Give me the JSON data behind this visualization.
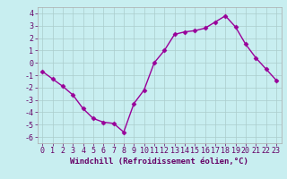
{
  "x": [
    0,
    1,
    2,
    3,
    4,
    5,
    6,
    7,
    8,
    9,
    10,
    11,
    12,
    13,
    14,
    15,
    16,
    17,
    18,
    19,
    20,
    21,
    22,
    23
  ],
  "y": [
    -0.7,
    -1.3,
    -1.9,
    -2.6,
    -3.7,
    -4.5,
    -4.8,
    -4.9,
    -5.6,
    -3.3,
    -2.2,
    0.0,
    1.0,
    2.3,
    2.5,
    2.6,
    2.8,
    3.3,
    3.8,
    2.9,
    1.5,
    0.4,
    -0.5,
    -1.4
  ],
  "line_color": "#990099",
  "marker": "D",
  "marker_size": 2.5,
  "linewidth": 1.0,
  "xlabel": "Windchill (Refroidissement éolien,°C)",
  "xlabel_fontsize": 6.5,
  "ylim": [
    -6.5,
    4.5
  ],
  "xlim": [
    -0.5,
    23.5
  ],
  "yticks": [
    -6,
    -5,
    -4,
    -3,
    -2,
    -1,
    0,
    1,
    2,
    3,
    4
  ],
  "xticks": [
    0,
    1,
    2,
    3,
    4,
    5,
    6,
    7,
    8,
    9,
    10,
    11,
    12,
    13,
    14,
    15,
    16,
    17,
    18,
    19,
    20,
    21,
    22,
    23
  ],
  "bg_color": "#c8eef0",
  "grid_color": "#aacccc",
  "tick_color": "#660066",
  "tick_fontsize": 6,
  "spine_color": "#aaaaaa"
}
